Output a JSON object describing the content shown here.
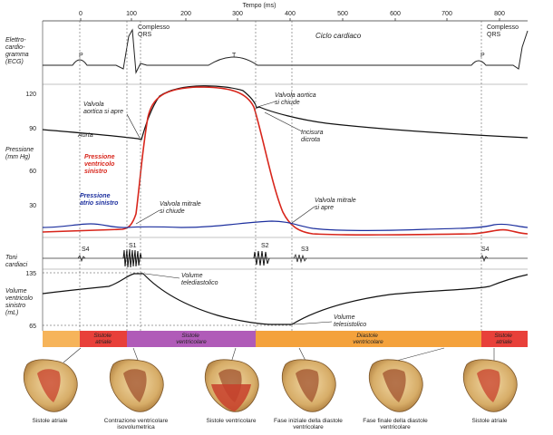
{
  "time_axis": {
    "title": "Tempo (ms)",
    "ticks": [
      "0",
      "100",
      "200",
      "300",
      "400",
      "500",
      "600",
      "700",
      "800"
    ]
  },
  "ecg": {
    "label_lines": [
      "Elettro-",
      "cardio-",
      "gramma",
      "(ECG)"
    ],
    "qrs_left": [
      "Complesso",
      "QRS"
    ],
    "qrs_right": [
      "Complesso",
      "QRS"
    ],
    "cycle_label": "Ciclo cardiaco",
    "p_label": "P",
    "t_label": "T"
  },
  "pressure": {
    "axis_label_lines": [
      "Pressione",
      "(mm Hg)"
    ],
    "ticks": [
      "120",
      "90",
      "60",
      "30"
    ],
    "aorta_label": "Aorta",
    "ventricle_label_lines": [
      "Pressione",
      "ventricolo",
      "sinistro"
    ],
    "atrium_label_lines": [
      "Pressione",
      "atrio sinistro"
    ],
    "aortic_open_lines": [
      "Valvola",
      "aortica si apre"
    ],
    "aortic_close_lines": [
      "Valvola aortica",
      "si chiude"
    ],
    "dicrotic_lines": [
      "Incisura",
      "dicrota"
    ],
    "mitral_close_lines": [
      "Valvola mitrale",
      "si chiude"
    ],
    "mitral_open_lines": [
      "Valvola mitrale",
      "si apre"
    ]
  },
  "sounds": {
    "label_lines": [
      "Toni",
      "cardiaci"
    ],
    "s4": "S4",
    "s1": "S1",
    "s2": "S2",
    "s3": "S3",
    "s4b": "S4"
  },
  "volume": {
    "axis_label_lines": [
      "Volume",
      "ventricolo",
      "sinistro",
      "(mL)"
    ],
    "tick_high": "135",
    "tick_low": "65",
    "edv_lines": [
      "Volume",
      "telediastolico"
    ],
    "esv_lines": [
      "Volume",
      "telesistolico"
    ]
  },
  "phases": [
    {
      "lines": [
        "Sistole",
        "atriale"
      ],
      "color": "#e8403a"
    },
    {
      "lines": [
        "Sistole",
        "ventricolare"
      ],
      "color": "#b05bb8"
    },
    {
      "lines": [
        "Diastole",
        "ventricolare"
      ],
      "color": "#f4a23c"
    },
    {
      "lines": [
        "Sistole",
        "atriale"
      ],
      "color": "#e8403a"
    }
  ],
  "hearts": [
    {
      "lines": [
        "Sistole atriale"
      ]
    },
    {
      "lines": [
        "Contrazione ventricolare",
        "isovolumetrica"
      ]
    },
    {
      "lines": [
        "Sistole ventricolare"
      ]
    },
    {
      "lines": [
        "Fase iniziale della diastole",
        "ventricolare"
      ]
    },
    {
      "lines": [
        "Fase finale della diastole",
        "ventricolare"
      ]
    },
    {
      "lines": [
        "Sistole atriale"
      ]
    }
  ],
  "colors": {
    "aorta": "#111111",
    "ventricle": "#d8261c",
    "atrium": "#1c2f9e",
    "heart_tissue": "#d8b070",
    "heart_red": "#c8402c"
  }
}
